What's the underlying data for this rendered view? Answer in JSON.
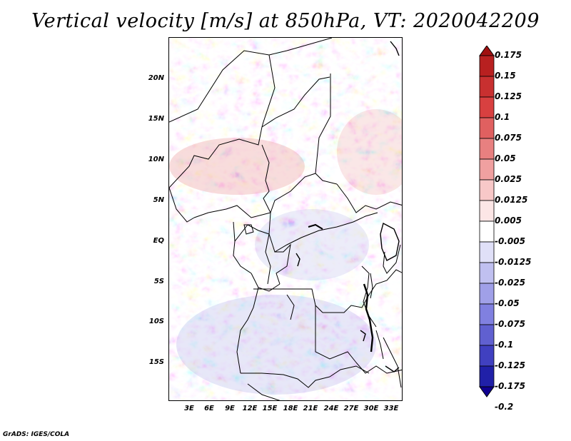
{
  "title": "Vertical velocity [m/s] at 850hPa, VT: 2020042209",
  "footer": "GrADS: IGES/COLA",
  "map": {
    "lat_range": [
      -20,
      24.5
    ],
    "lon_range": [
      0,
      34.5
    ],
    "lat_ticks": [
      "20N",
      "15N",
      "10N",
      "5N",
      "EQ",
      "5S",
      "10S",
      "15S"
    ],
    "lon_ticks": [
      "3E",
      "6E",
      "9E",
      "12E",
      "15E",
      "18E",
      "21E",
      "24E",
      "27E",
      "30E",
      "33E"
    ]
  },
  "colorbar": {
    "labels": [
      "0.175",
      "0.15",
      "0.125",
      "0.1",
      "0.075",
      "0.05",
      "0.025",
      "0.0125",
      "0.005",
      "-0.005",
      "-0.0125",
      "-0.025",
      "-0.05",
      "-0.075",
      "-0.1",
      "-0.125",
      "-0.175",
      "-0.2"
    ],
    "colors": [
      "#a01010",
      "#b82020",
      "#c83030",
      "#d84040",
      "#e06060",
      "#e88080",
      "#f0a0a0",
      "#f8c8c8",
      "#fce6e6",
      "#ffffff",
      "#e0e0f8",
      "#c0c0f0",
      "#a0a0e8",
      "#8080e0",
      "#6060d0",
      "#4040c0",
      "#2020a8",
      "#100090"
    ]
  },
  "colors": {
    "positive": "#e06060",
    "negative": "#6060d0",
    "neutral": "#ffffff"
  }
}
